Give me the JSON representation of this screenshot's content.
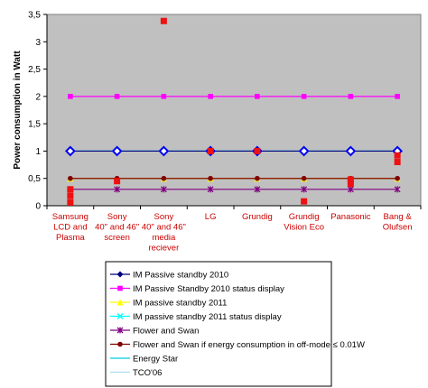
{
  "chart_data": {
    "type": "line",
    "ylabel": "Power consumption in Watt",
    "xlabel": "",
    "ylim": [
      0,
      3.5
    ],
    "yticks": [
      "0",
      "0,5",
      "1",
      "1,5",
      "2",
      "2,5",
      "3",
      "3,5"
    ],
    "ytick_values": [
      0,
      0.5,
      1,
      1.5,
      2,
      2.5,
      3,
      3.5
    ],
    "grid": false,
    "legend_position": "bottom",
    "categories": [
      [
        "Samsung",
        "LCD and",
        "Plasma"
      ],
      [
        "Sony",
        "40\" and 46\"",
        "screen"
      ],
      [
        "Sony",
        "40\" and 46\"",
        "media",
        "reciever"
      ],
      [
        "LG"
      ],
      [
        "Grundig"
      ],
      [
        "Grundig",
        "Vision Eco"
      ],
      [
        "Panasonic"
      ],
      [
        "Bang &",
        "Olufsen"
      ]
    ],
    "measured": {
      "color": "#ee1111",
      "points": [
        [
          0,
          0.3
        ],
        [
          0,
          0.18
        ],
        [
          0,
          0.06
        ],
        [
          1,
          0.45
        ],
        [
          2,
          3.38
        ],
        [
          3,
          1.0
        ],
        [
          4,
          1.0
        ],
        [
          5,
          0.08
        ],
        [
          6,
          0.48
        ],
        [
          6,
          0.4
        ],
        [
          7,
          0.92
        ],
        [
          7,
          0.8
        ]
      ]
    },
    "series": [
      {
        "name": "IM Passive standby 2010",
        "color": "#000080",
        "marker": "diamond",
        "values": [
          1,
          1,
          1,
          1,
          1,
          1,
          1,
          1
        ]
      },
      {
        "name": "IM Passive Standby 2010 status display",
        "color": "#ff00ff",
        "marker": "square",
        "values": [
          2,
          2,
          2,
          2,
          2,
          2,
          2,
          2
        ]
      },
      {
        "name": "IM passive standby 2011",
        "color": "#ffff00",
        "marker": "triangle",
        "values": [
          0.5,
          0.5,
          0.5,
          0.5,
          0.5,
          0.5,
          0.5,
          0.5
        ]
      },
      {
        "name": "IM passive standby 2011 status display",
        "color": "#00ffff",
        "marker": "x",
        "values": [
          1,
          1,
          1,
          1,
          1,
          1,
          1,
          1
        ]
      },
      {
        "name": "Flower and Swan",
        "color": "#800080",
        "marker": "star",
        "values": [
          0.3,
          0.3,
          0.3,
          0.3,
          0.3,
          0.3,
          0.3,
          0.3
        ]
      },
      {
        "name": "Flower and Swan if energy consumption in off-mode ≤ 0.01W",
        "color": "#800000",
        "marker": "circle",
        "values": [
          0.5,
          0.5,
          0.5,
          0.5,
          0.5,
          0.5,
          0.5,
          0.5
        ]
      },
      {
        "name": "Energy Star",
        "color": "#00ccdd",
        "marker": "none",
        "values": [
          1,
          1,
          1,
          1,
          1,
          1,
          1,
          1
        ]
      },
      {
        "name": "TCO'06",
        "color": "#aaddee",
        "marker": "none",
        "values": [
          1,
          1,
          1,
          1,
          1,
          1,
          1,
          1
        ]
      }
    ],
    "overlay_marker": {
      "color": "#0000ee",
      "shape": "open-diamond",
      "values": [
        1,
        1,
        1,
        1,
        1,
        1,
        1,
        1
      ]
    }
  }
}
